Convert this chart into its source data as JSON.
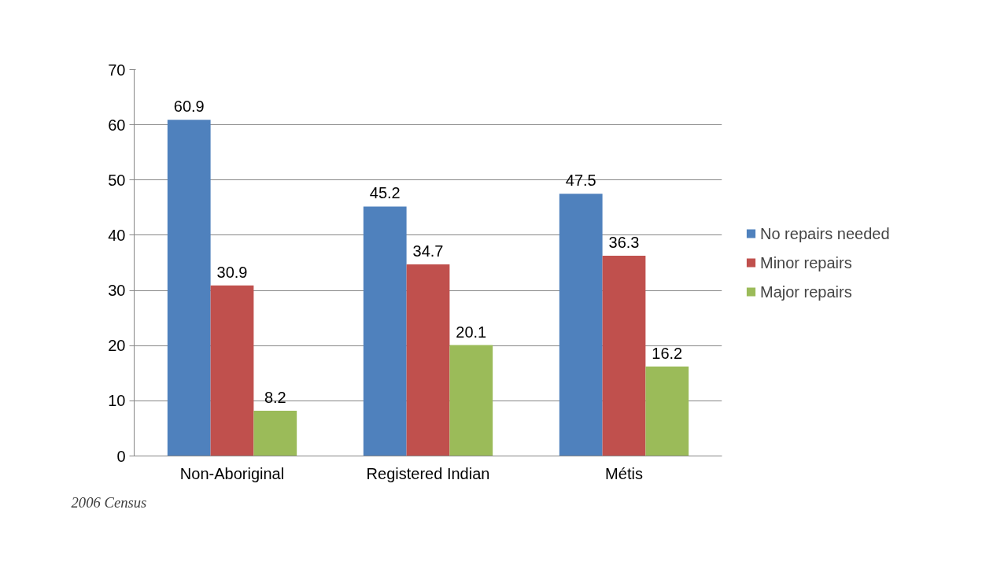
{
  "chart_data": {
    "type": "bar",
    "categories": [
      "Non-Aboriginal",
      "Registered Indian",
      "Métis"
    ],
    "series": [
      {
        "name": "No repairs needed",
        "color": "#4f81bd",
        "values": [
          60.9,
          45.2,
          47.5
        ]
      },
      {
        "name": "Minor repairs",
        "color": "#c0504d",
        "values": [
          30.9,
          34.7,
          36.3
        ]
      },
      {
        "name": "Major repairs",
        "color": "#9bbb59",
        "values": [
          8.2,
          20.1,
          16.2
        ]
      }
    ],
    "ylim": [
      0,
      70
    ],
    "yticks": [
      0,
      10,
      20,
      30,
      40,
      50,
      60,
      70
    ],
    "grid": "y",
    "legend": "right",
    "data_labels": true,
    "annotations": [
      "2006 Census"
    ]
  }
}
